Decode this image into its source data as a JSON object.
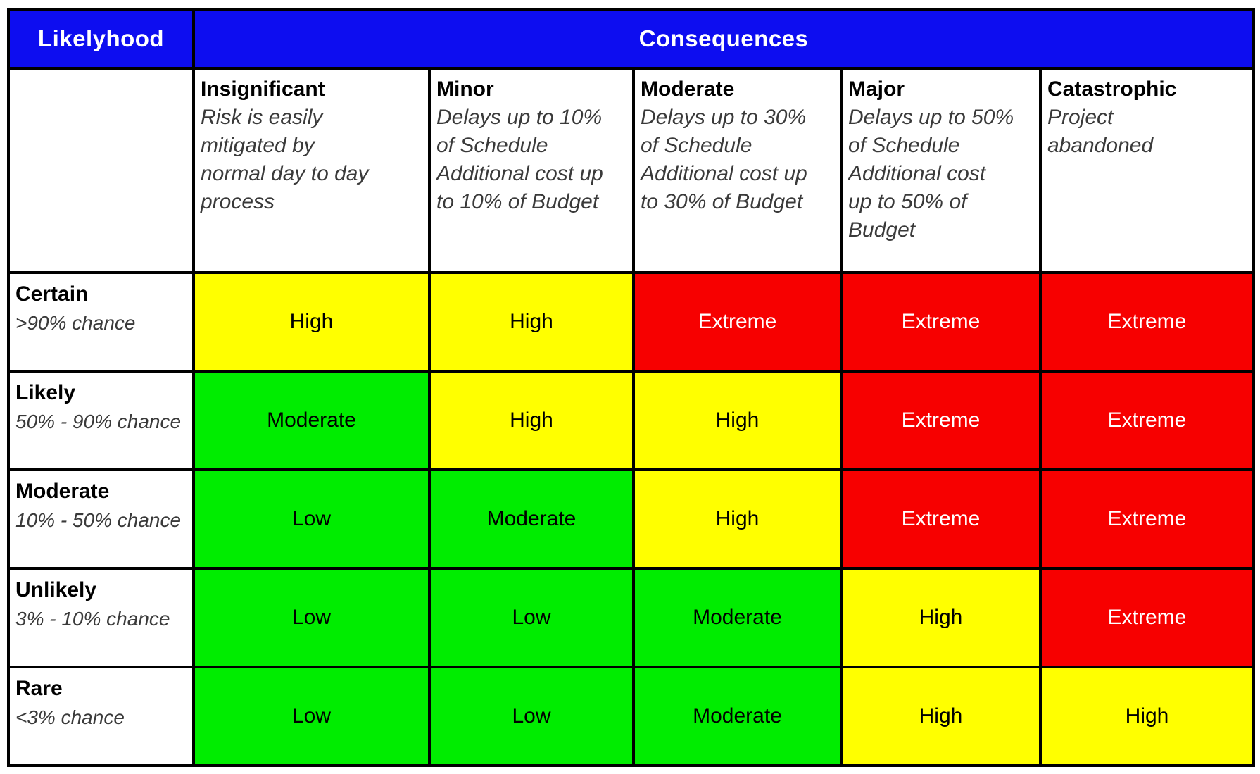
{
  "header": {
    "likelihood_label": "Likelyhood",
    "consequences_label": "Consequences"
  },
  "colors": {
    "header_bg": "#0d0df0",
    "header_text": "#ffffff",
    "border": "#000000",
    "title_text": "#000000",
    "muted_text": "#3a3a3a",
    "risk_levels": {
      "Low": {
        "bg": "#00ed00",
        "text": "#000000"
      },
      "Moderate": {
        "bg": "#00ed00",
        "text": "#000000"
      },
      "High": {
        "bg": "#ffff00",
        "text": "#000000"
      },
      "Extreme": {
        "bg": "#f70000",
        "text": "#ffffff"
      }
    }
  },
  "consequence_columns": [
    {
      "title": "Insignificant",
      "desc_lines": [
        "Risk is easily",
        "mitigated by",
        "normal day to day",
        "process"
      ]
    },
    {
      "title": "Minor",
      "desc_lines": [
        "Delays up to 10%",
        "of Schedule",
        "Additional cost up",
        "to 10% of Budget"
      ]
    },
    {
      "title": "Moderate",
      "desc_lines": [
        "Delays up to 30%",
        "of Schedule",
        "Additional cost up",
        "to 30% of Budget"
      ]
    },
    {
      "title": "Major",
      "desc_lines": [
        "Delays up to 50%",
        "of Schedule",
        "Additional cost",
        "up to 50% of",
        "Budget"
      ]
    },
    {
      "title": "Catastrophic",
      "desc_lines": [
        "Project",
        "abandoned"
      ]
    }
  ],
  "likelihood_rows": [
    {
      "label": "Certain",
      "chance": ">90% chance",
      "cells": [
        "High",
        "High",
        "Extreme",
        "Extreme",
        "Extreme"
      ]
    },
    {
      "label": "Likely",
      "chance": "50% - 90% chance",
      "cells": [
        "Moderate",
        "High",
        "High",
        "Extreme",
        "Extreme"
      ]
    },
    {
      "label": "Moderate",
      "chance": "10% - 50% chance",
      "cells": [
        "Low",
        "Moderate",
        "High",
        "Extreme",
        "Extreme"
      ]
    },
    {
      "label": "Unlikely",
      "chance": "3% - 10% chance",
      "cells": [
        "Low",
        "Low",
        "Moderate",
        "High",
        "Extreme"
      ]
    },
    {
      "label": "Rare",
      "chance": "<3% chance",
      "cells": [
        "Low",
        "Low",
        "Moderate",
        "High",
        "High"
      ]
    }
  ]
}
